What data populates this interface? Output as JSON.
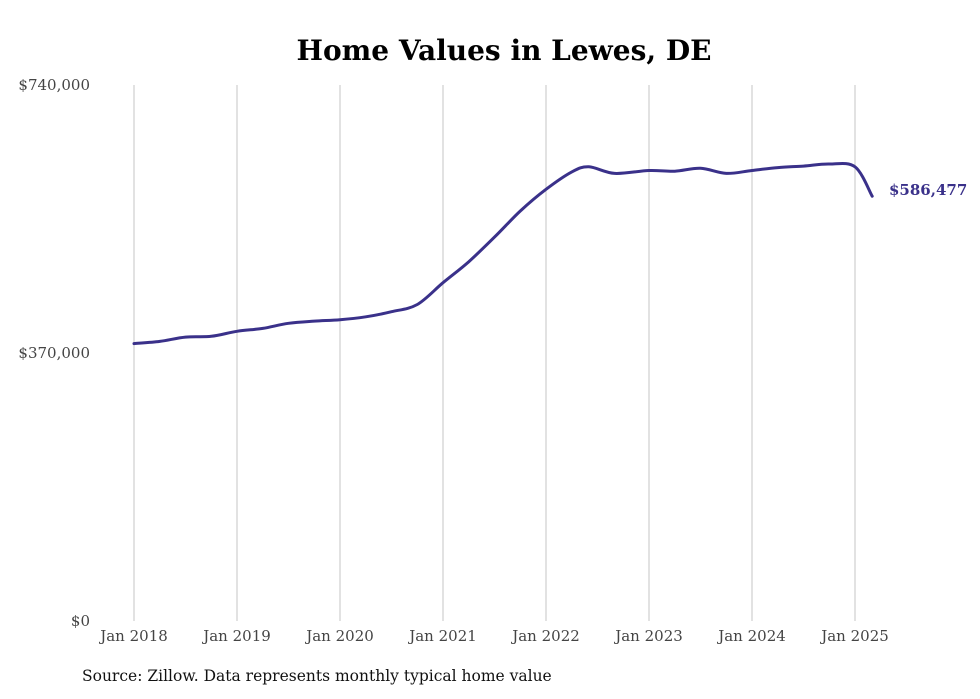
{
  "chart_data": {
    "type": "line",
    "title": "Home Values in Lewes, DE",
    "xlabel": "",
    "ylabel": "",
    "x_ticks": [
      "Jan 2018",
      "Jan 2019",
      "Jan 2020",
      "Jan 2021",
      "Jan 2022",
      "Jan 2023",
      "Jan 2024",
      "Jan 2025"
    ],
    "y_ticks": [
      "$740,000",
      "$370,000",
      "$0"
    ],
    "ylim": [
      0,
      740000
    ],
    "xlim": [
      "2018-01",
      "2025-03"
    ],
    "grid": "vertical",
    "line_color": "#3a318a",
    "series": [
      {
        "name": "",
        "x": [
          "2018-01",
          "2018-04",
          "2018-07",
          "2018-10",
          "2019-01",
          "2019-04",
          "2019-07",
          "2019-10",
          "2020-01",
          "2020-04",
          "2020-07",
          "2020-10",
          "2021-01",
          "2021-04",
          "2021-07",
          "2021-10",
          "2022-01",
          "2022-04",
          "2022-06",
          "2022-09",
          "2023-01",
          "2023-04",
          "2023-07",
          "2023-10",
          "2024-01",
          "2024-04",
          "2024-07",
          "2024-10",
          "2025-01",
          "2025-03"
        ],
        "values": [
          383000,
          386000,
          392000,
          393000,
          400000,
          404000,
          411000,
          414000,
          416000,
          420000,
          427000,
          437000,
          467000,
          496000,
          530000,
          566000,
          596000,
          620000,
          627000,
          618000,
          622000,
          621000,
          625000,
          618000,
          622000,
          626000,
          628000,
          631000,
          627000,
          586477
        ]
      }
    ],
    "end_label": "$586,477"
  },
  "source_note": "Source: Zillow. Data represents monthly typical home value"
}
